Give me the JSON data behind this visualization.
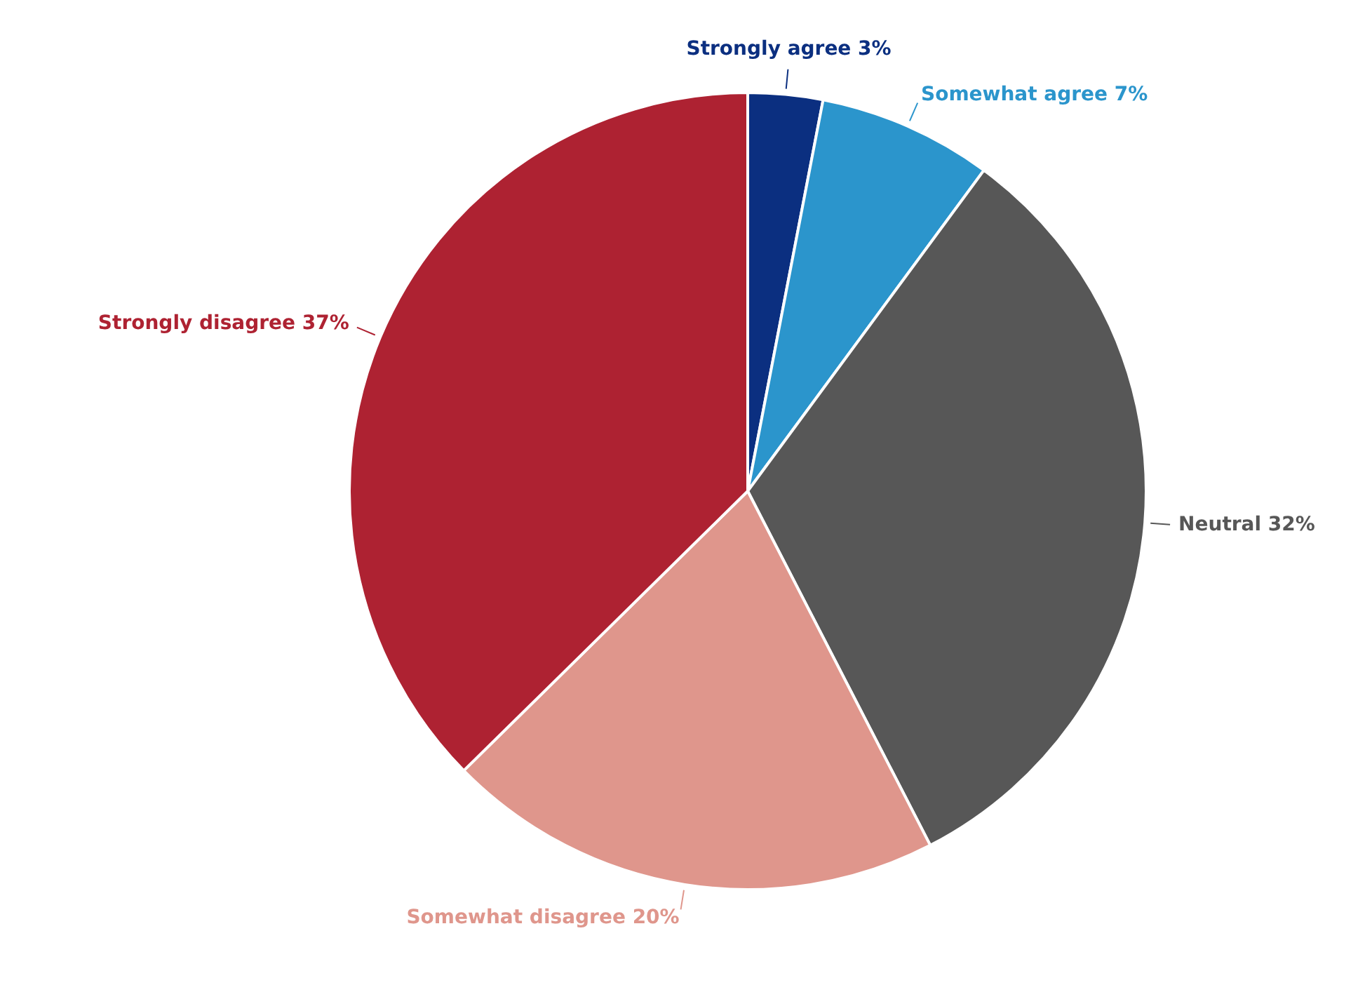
{
  "chart_data": {
    "type": "pie",
    "categories": [
      "Strongly agree",
      "Somewhat agree",
      "Neutral",
      "Somewhat disagree",
      "Strongly disagree"
    ],
    "values": [
      3,
      7,
      32,
      20,
      37
    ],
    "value_labels": [
      "3%",
      "7%",
      "32%",
      "20%",
      "37%"
    ],
    "colors": [
      "#0b2f80",
      "#2b95cc",
      "#575757",
      "#df968c",
      "#ae2232"
    ],
    "legend": false
  }
}
